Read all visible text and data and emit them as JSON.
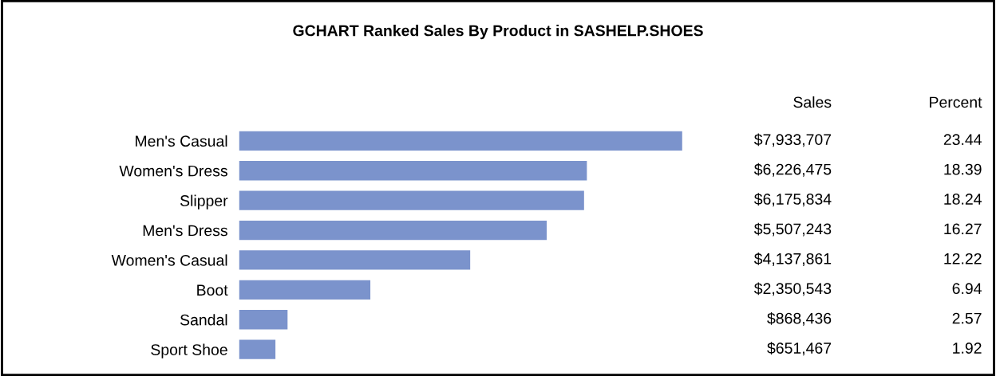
{
  "chart_data": {
    "type": "bar",
    "orientation": "horizontal",
    "title": "GCHART Ranked Sales By Product in SASHELP.SHOES",
    "categories": [
      "Men's Casual",
      "Women's Dress",
      "Slipper",
      "Men's Dress",
      "Women's Casual",
      "Boot",
      "Sandal",
      "Sport Shoe"
    ],
    "values": [
      7933707,
      6226475,
      6175834,
      5507243,
      4137861,
      2350543,
      868436,
      651467
    ],
    "value_labels": [
      "$7,933,707",
      "$6,226,475",
      "$6,175,834",
      "$5,507,243",
      "$4,137,861",
      "$2,350,543",
      "$868,436",
      "$651,467"
    ],
    "color": "#7b93cc",
    "annotations": [
      "Sales",
      "Percent",
      "23.44",
      "18.39",
      "18.24",
      "16.27",
      "12.22",
      "6.94",
      "2.57",
      "1.92"
    ],
    "grid": false,
    "legend": false,
    "tick_labels": "y"
  }
}
